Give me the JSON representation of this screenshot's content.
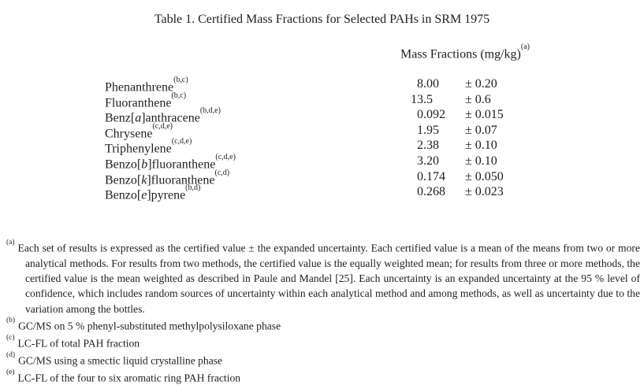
{
  "page": {
    "title": "Table 1.  Certified Mass Fractions for Selected PAHs in SRM 1975"
  },
  "column_header": {
    "label": "Mass Fractions (mg/kg)",
    "marker": "(a)"
  },
  "table": {
    "rows": [
      {
        "name_pre": "Phenanthrene",
        "name_italic": "",
        "name_post": "",
        "marker": "(b,c)",
        "value": "8.00",
        "uncertainty": "± 0.20"
      },
      {
        "name_pre": "Fluoranthene",
        "name_italic": "",
        "name_post": "",
        "marker": "(b,c)",
        "value": "13.5",
        "uncertainty": "± 0.6"
      },
      {
        "name_pre": "Benz[",
        "name_italic": "a",
        "name_post": "]anthracene",
        "marker": "(b,d,e)",
        "value": "0.092",
        "uncertainty": "± 0.015"
      },
      {
        "name_pre": "Chrysene",
        "name_italic": "",
        "name_post": "",
        "marker": "(c,d,e)",
        "value": "1.95",
        "uncertainty": "± 0.07"
      },
      {
        "name_pre": "Triphenylene",
        "name_italic": "",
        "name_post": "",
        "marker": "(c,d,e)",
        "value": "2.38",
        "uncertainty": "± 0.10"
      },
      {
        "name_pre": "Benzo[",
        "name_italic": "b",
        "name_post": "]fluoranthene",
        "marker": "(c,d,e)",
        "value": "3.20",
        "uncertainty": "± 0.10"
      },
      {
        "name_pre": "Benzo[",
        "name_italic": "k",
        "name_post": "]fluoranthene",
        "marker": "(c,d)",
        "value": "0.174",
        "uncertainty": "± 0.050"
      },
      {
        "name_pre": "Benzo[",
        "name_italic": "e",
        "name_post": "]pyrene",
        "marker": "(b,d)",
        "value": "0.268",
        "uncertainty": "± 0.023"
      }
    ]
  },
  "footnotes": [
    {
      "marker": "(a)",
      "text": "Each set of results is expressed as the certified value ± the expanded uncertainty.  Each certified value is a mean of the means from two or more analytical methods.  For results from two methods, the certified value is the equally weighted mean; for results from three or more methods, the certified value is the mean weighted as described in Paule and Mandel [25].  Each uncertainty is an expanded uncertainty at the 95 % level of confidence, which includes random sources of uncertainty within each analytical method and among methods, as well as uncertainty due to the variation among the bottles."
    },
    {
      "marker": "(b)",
      "text": "GC/MS on 5 % phenyl-substituted methylpolysiloxane phase"
    },
    {
      "marker": "(c)",
      "text": "LC-FL of total PAH fraction"
    },
    {
      "marker": "(d)",
      "text": "GC/MS using a smectic liquid crystalline phase"
    },
    {
      "marker": "(e)",
      "text": "LC-FL of the four to six aromatic ring PAH fraction"
    }
  ]
}
